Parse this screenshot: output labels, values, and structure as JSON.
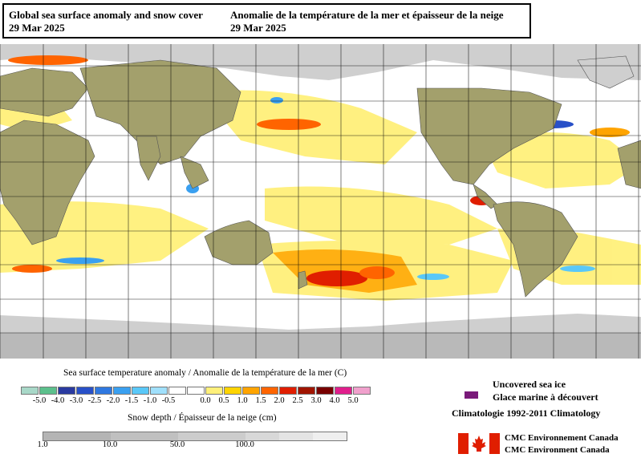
{
  "title": {
    "en_line1": "Global sea surface anomaly and snow cover",
    "en_line2": "29 Mar 2025",
    "fr_line1": "Anomalie de la température de la mer et épaisseur de la neige",
    "fr_line2": "29 Mar 2025"
  },
  "legend": {
    "sst_label": "Sea surface temperature anomaly / Anomalie de la température de la mer (C)",
    "sst_ticks": [
      "-5.0",
      "-4.0",
      "-3.0",
      "-2.5",
      "-2.0",
      "-1.5",
      "-1.0",
      "-0.5",
      "0.0",
      "0.5",
      "1.0",
      "1.5",
      "2.0",
      "2.5",
      "3.0",
      "4.0",
      "5.0"
    ],
    "sst_colors": [
      "#a8d8c8",
      "#5cc08c",
      "#2a3aa0",
      "#2850c8",
      "#2f78e0",
      "#3aa0f0",
      "#5ac8f8",
      "#a0e0fc",
      "#ffffff",
      "#ffffff",
      "#fff07a",
      "#ffd400",
      "#ffa400",
      "#ff6400",
      "#e01e00",
      "#a01400",
      "#780000",
      "#e01e8c",
      "#f0a0cc"
    ],
    "snow_label": "Snow depth / Épaisseur de la neige (cm)",
    "snow_ticks": [
      "1.0",
      "10.0",
      "50.0",
      "100.0"
    ],
    "snow_colors": [
      "#b4b4b4",
      "#c0c0c0",
      "#cccccc",
      "#d8d8d8",
      "#e4e4e4",
      "#efefef"
    ],
    "ice_label_en": "Uncovered sea ice",
    "ice_label_fr": "Glace marine à découvert",
    "ice_color": "#7a1a7a",
    "climatology": "Climatologie 1992-2011 Climatology",
    "agency_fr": "CMC Environnement Canada",
    "agency_en": "CMC Environment Canada"
  },
  "colors": {
    "land": "#a3a06c",
    "ocean": "#ffffff",
    "grid": "#000000"
  }
}
